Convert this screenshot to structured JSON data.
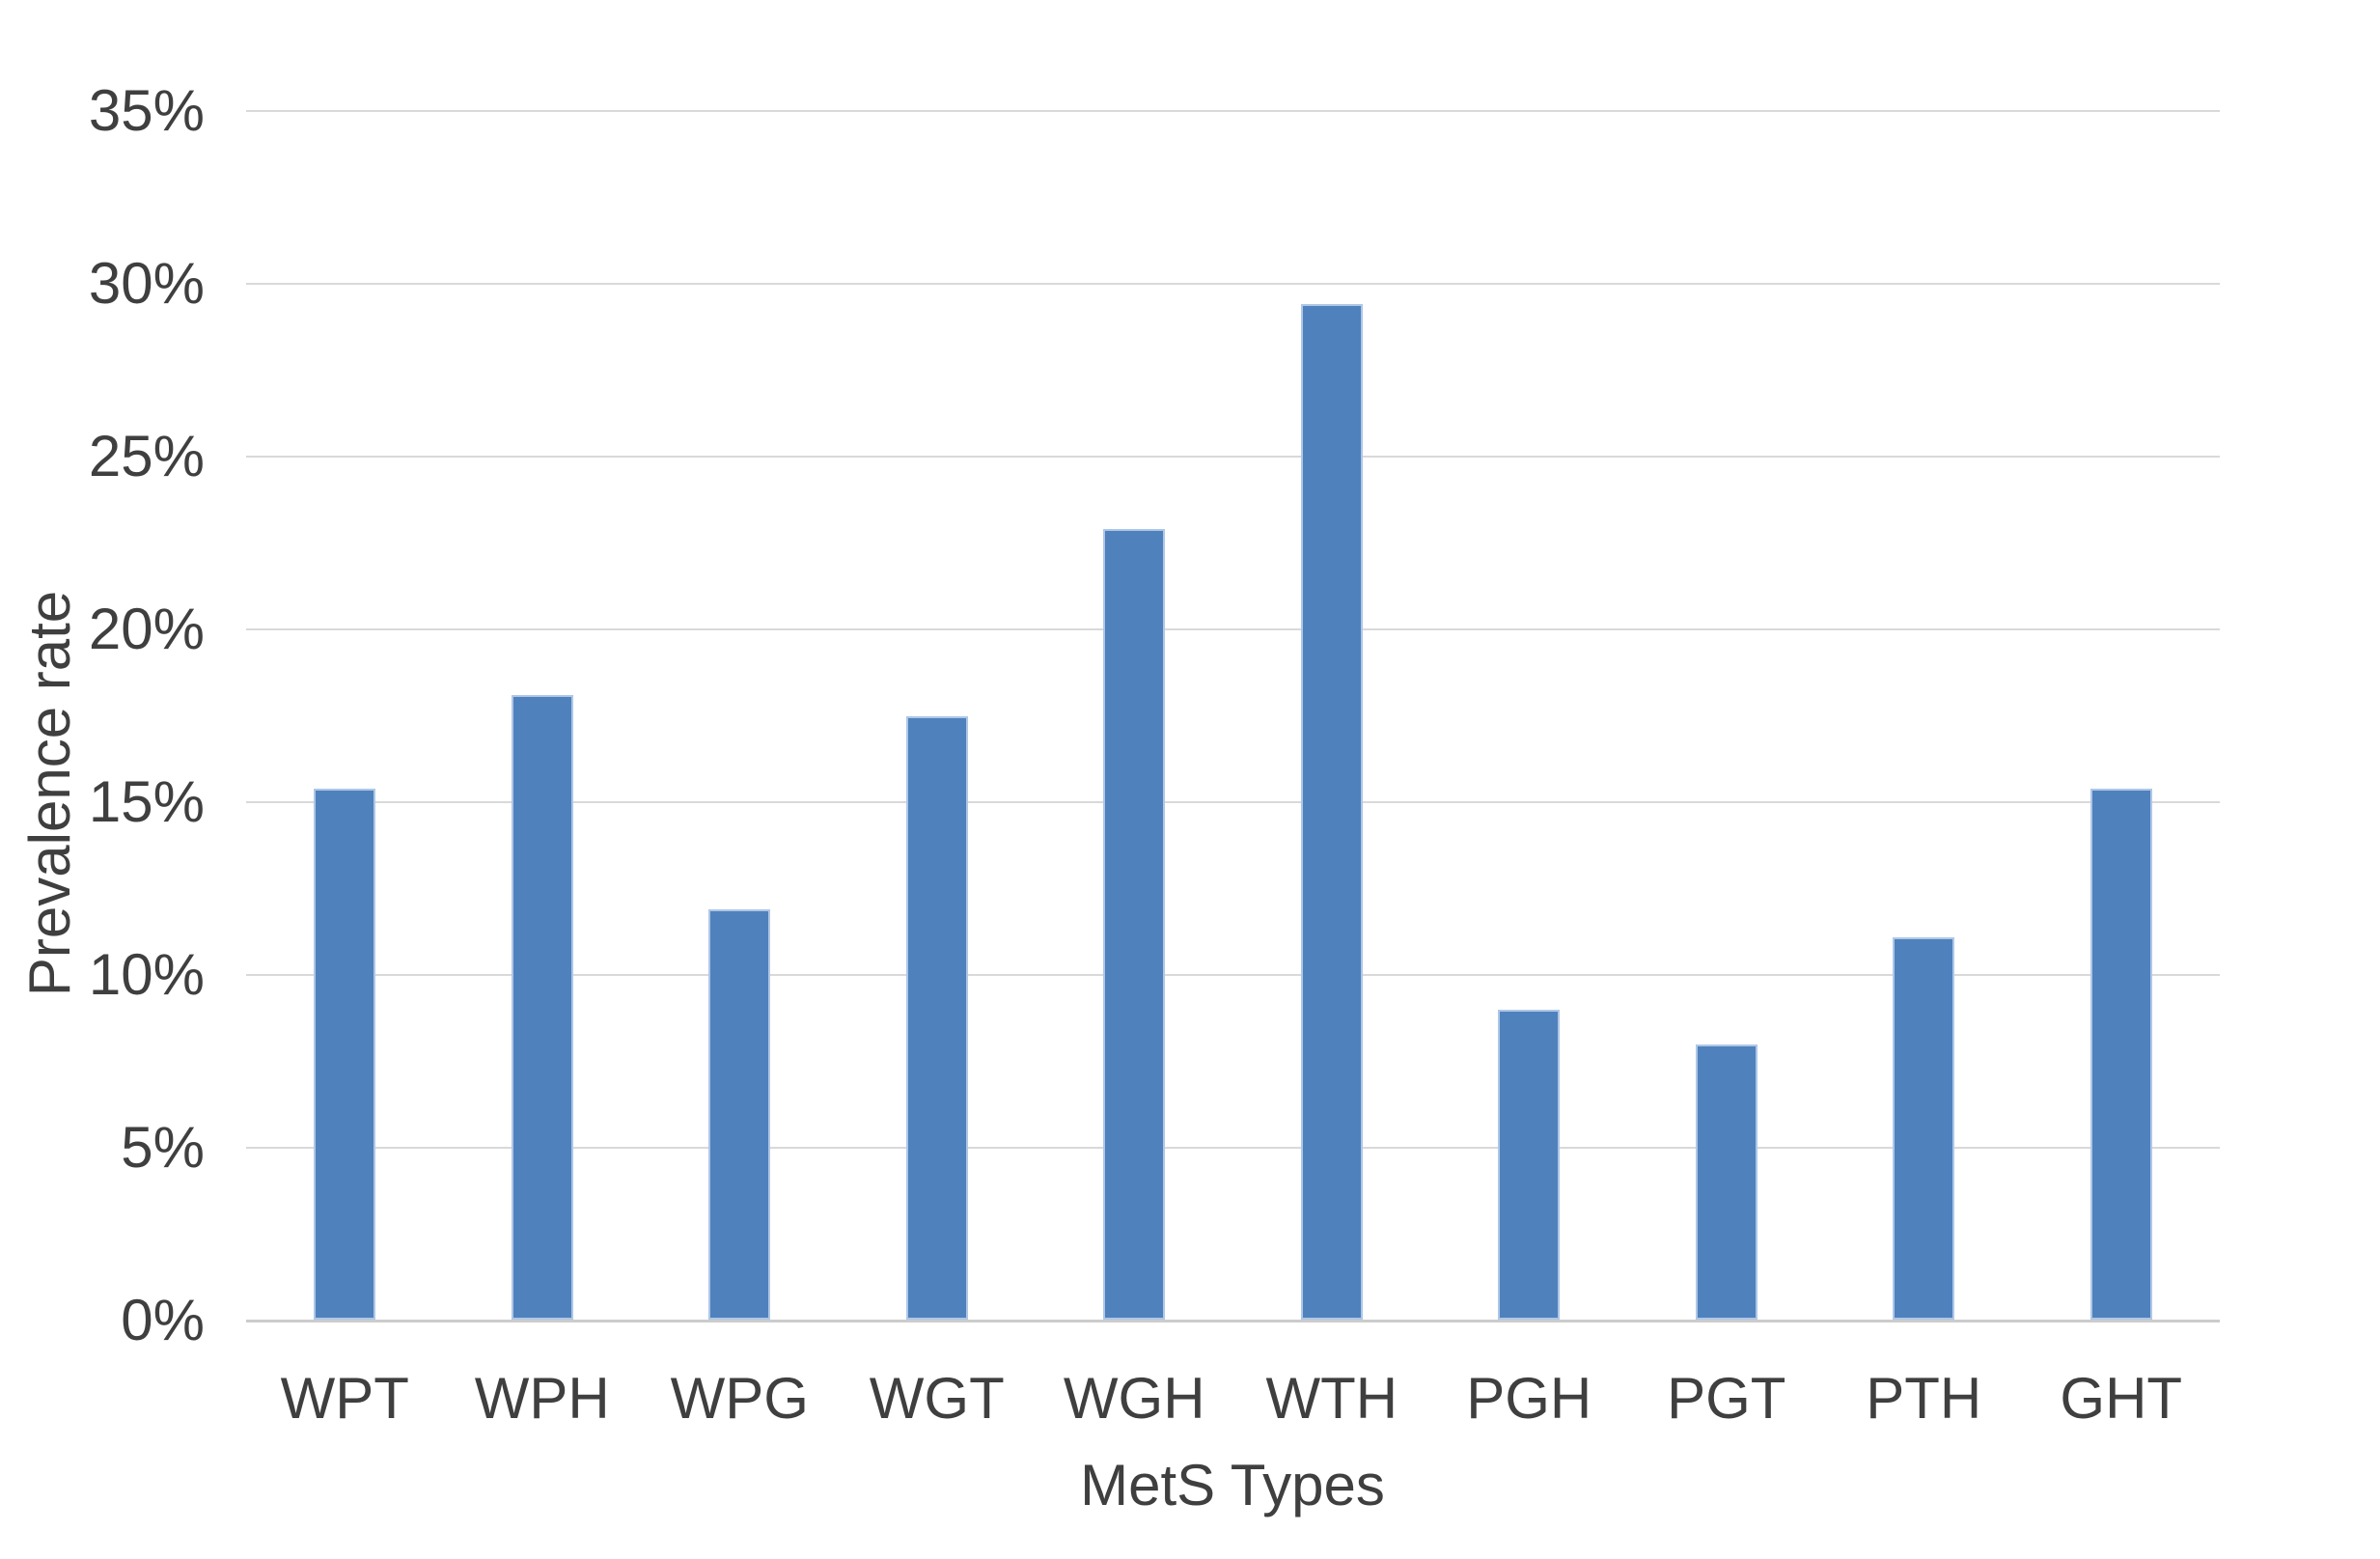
{
  "chart_data": {
    "type": "bar",
    "title": "",
    "categories": [
      "WPT",
      "WPH",
      "WPG",
      "WGT",
      "WGH",
      "WTH",
      "PGH",
      "PGT",
      "PTH",
      "GHT"
    ],
    "values": [
      15.4,
      18.1,
      11.9,
      17.5,
      22.9,
      29.4,
      9.0,
      8.0,
      11.1,
      15.4
    ],
    "xlabel": "MetS Types",
    "ylabel": "Prevalence rate",
    "ylim": [
      0,
      35
    ],
    "ytick_step": 5,
    "ytick_labels": [
      "0%",
      "5%",
      "10%",
      "15%",
      "20%",
      "25%",
      "30%",
      "35%"
    ],
    "grid": true,
    "legend_position": "none",
    "colors": {
      "bar": "#4F81BD",
      "bar_border": "#AEC7E7",
      "gridline": "#D9D9D9",
      "axis_line": "#CCCCCC",
      "text": "#3F3F3F",
      "background": "#FFFFFF"
    }
  }
}
